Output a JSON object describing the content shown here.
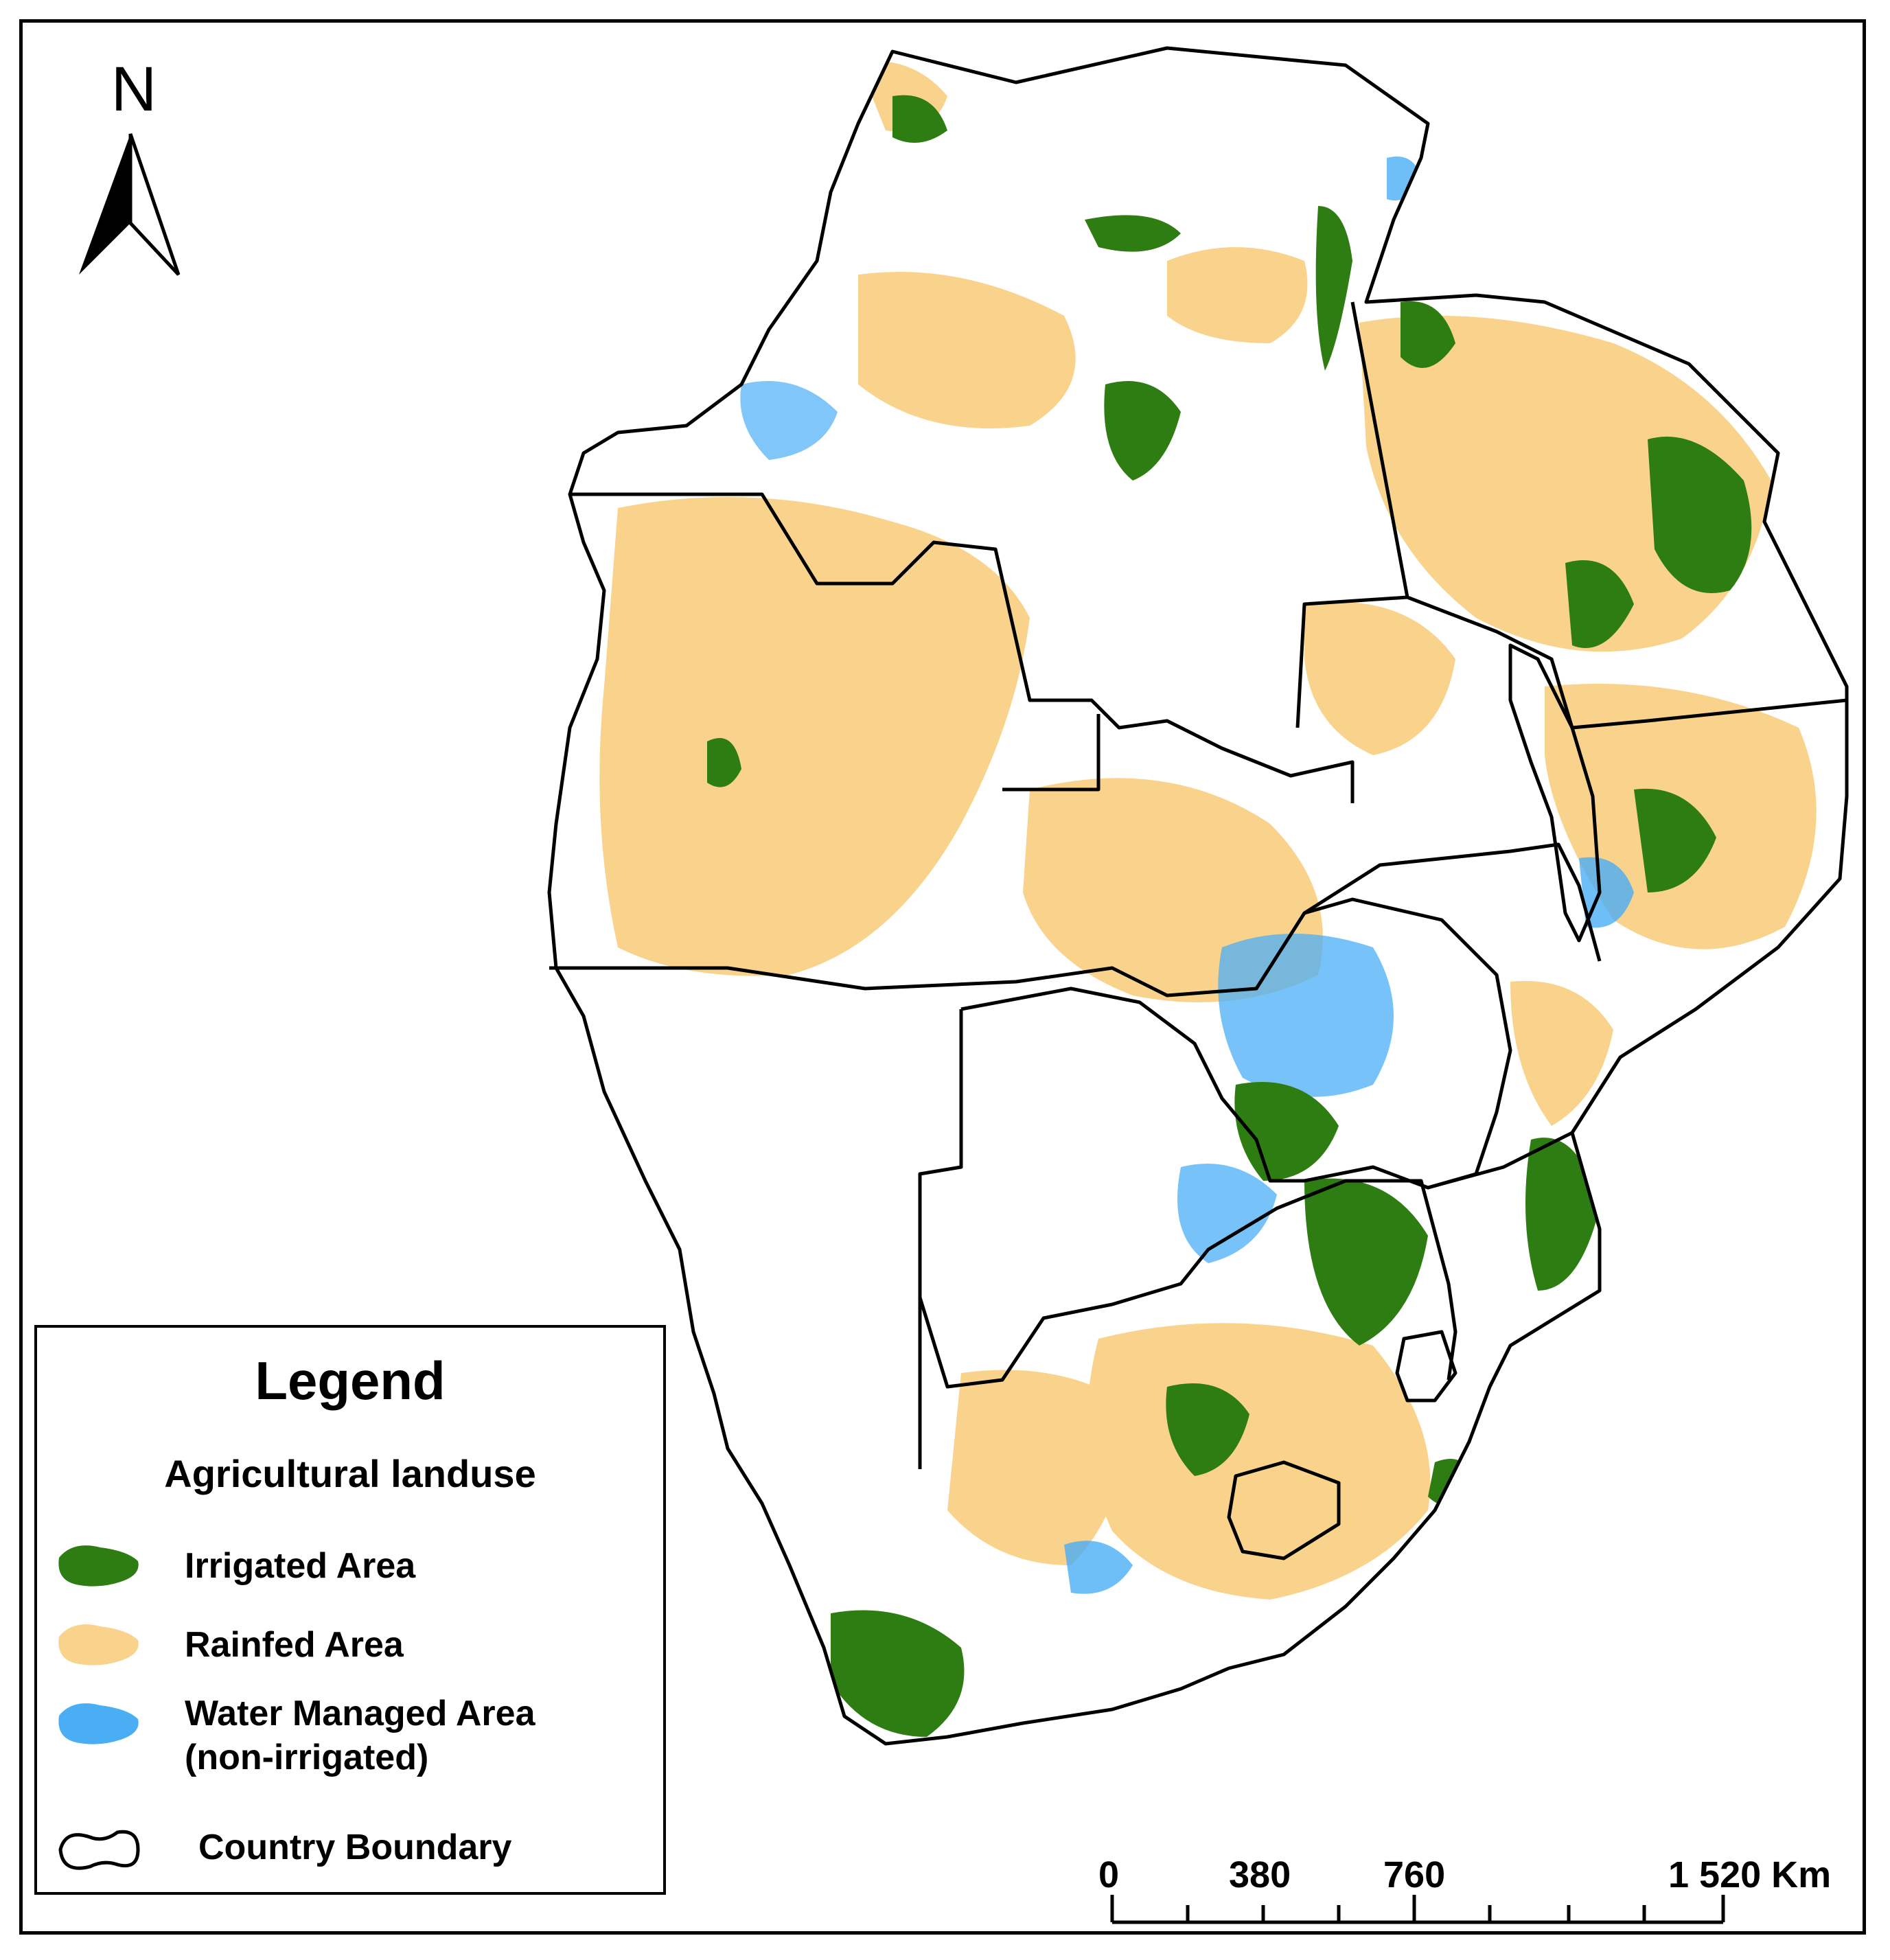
{
  "north_arrow": {
    "letter": "N"
  },
  "legend": {
    "title": "Legend",
    "subtitle": "Agricultural landuse",
    "items": [
      {
        "label": "Irrigated Area",
        "color": "#2e7d12",
        "icon": "irrigated-swatch"
      },
      {
        "label": "Rainfed Area",
        "color": "#f9d38c",
        "icon": "rainfed-swatch"
      },
      {
        "label": "Water Managed Area (non-irrigated)",
        "line1": "Water Managed Area",
        "line2": "(non-irrigated)",
        "color": "#4aaef5",
        "icon": "water-managed-swatch"
      },
      {
        "label": "Country Boundary",
        "color": "#000000",
        "icon": "country-boundary-swatch"
      }
    ]
  },
  "scale_bar": {
    "labels": [
      "0",
      "380",
      "760",
      "1 520 Km"
    ]
  },
  "colors": {
    "irrigated": "#2e7d12",
    "rainfed": "#f9d38c",
    "water_managed": "#4aaef5",
    "boundary": "#000000"
  }
}
